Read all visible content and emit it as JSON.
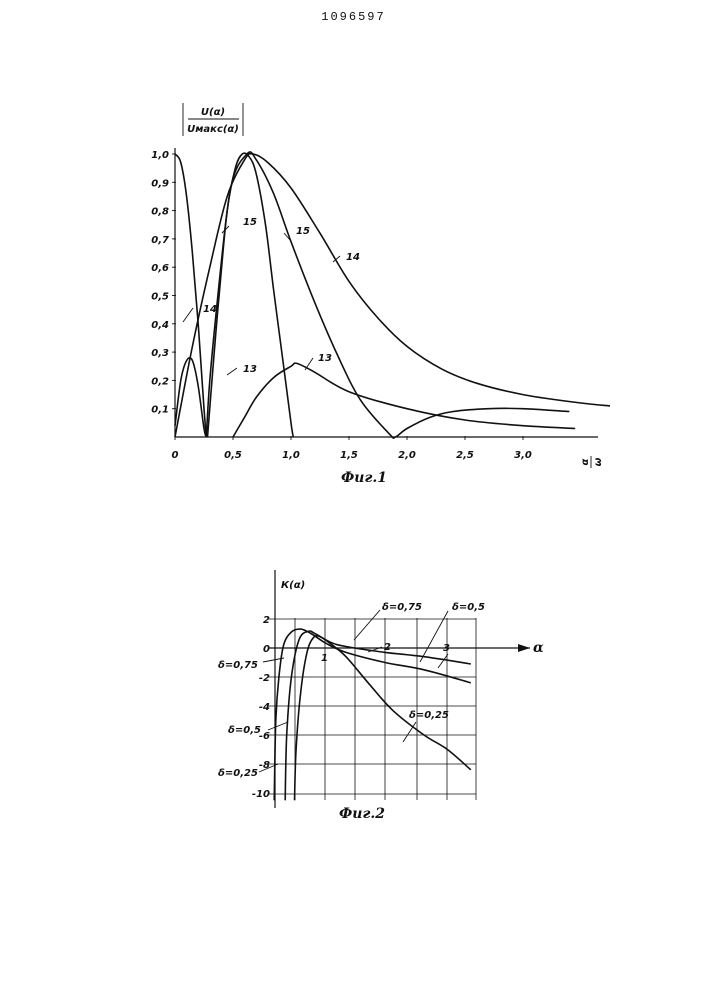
{
  "document": {
    "number": "1096597"
  },
  "chart_data": [
    {
      "type": "line",
      "figure_caption": "Фиг.1",
      "ylabel_top": "U(α)",
      "ylabel_bottom": "Uмакс(α)",
      "xlabel_top": "α",
      "xlabel_bottom": "ω",
      "xlim": [
        0,
        3.8
      ],
      "ylim": [
        0,
        1.0
      ],
      "xticks": [
        "0",
        "0,5",
        "1,0",
        "1,5",
        "2,0",
        "2,5",
        "3,0"
      ],
      "xtick_values": [
        0,
        0.5,
        1.0,
        1.5,
        2.0,
        2.5,
        3.0
      ],
      "yticks": [
        "0,1",
        "0,2",
        "0,3",
        "0,4",
        "0,5",
        "0,6",
        "0,7",
        "0,8",
        "0,9",
        "1,0"
      ],
      "ytick_values": [
        0.1,
        0.2,
        0.3,
        0.4,
        0.5,
        0.6,
        0.7,
        0.8,
        0.9,
        1.0
      ],
      "curve_labels": [
        "15",
        "15",
        "14",
        "14",
        "13",
        "13"
      ],
      "series": [
        {
          "name": "14",
          "points": [
            [
              0,
              0
            ],
            [
              0.15,
              0.32
            ],
            [
              0.3,
              0.6
            ],
            [
              0.45,
              0.85
            ],
            [
              0.6,
              0.98
            ],
            [
              0.67,
              1.0
            ],
            [
              0.8,
              0.97
            ],
            [
              1.0,
              0.88
            ],
            [
              1.25,
              0.72
            ],
            [
              1.5,
              0.55
            ],
            [
              1.75,
              0.42
            ],
            [
              2.0,
              0.32
            ],
            [
              2.3,
              0.24
            ],
            [
              2.6,
              0.19
            ],
            [
              3.0,
              0.15
            ],
            [
              3.5,
              0.12
            ],
            [
              3.75,
              0.11
            ]
          ]
        },
        {
          "name": "15",
          "points": [
            [
              0.28,
              0
            ],
            [
              0.38,
              0.5
            ],
            [
              0.48,
              0.88
            ],
            [
              0.62,
              1.0
            ],
            [
              0.7,
              0.98
            ],
            [
              0.85,
              0.86
            ],
            [
              1.0,
              0.69
            ],
            [
              1.2,
              0.48
            ],
            [
              1.4,
              0.29
            ],
            [
              1.6,
              0.13
            ],
            [
              1.85,
              0.01
            ],
            [
              1.9,
              0
            ],
            [
              2.0,
              0.03
            ],
            [
              2.2,
              0.07
            ],
            [
              2.4,
              0.09
            ],
            [
              2.7,
              0.1
            ],
            [
              3.0,
              0.1
            ],
            [
              3.4,
              0.09
            ]
          ]
        },
        {
          "name": "13",
          "points": [
            [
              0,
              0.04
            ],
            [
              0.05,
              0.2
            ],
            [
              0.1,
              0.27
            ],
            [
              0.15,
              0.27
            ],
            [
              0.2,
              0.18
            ],
            [
              0.25,
              0.03
            ],
            [
              0.27,
              0
            ]
          ]
        },
        {
          "name": "13",
          "points": [
            [
              0.5,
              0
            ],
            [
              0.6,
              0.07
            ],
            [
              0.7,
              0.14
            ],
            [
              0.85,
              0.21
            ],
            [
              1.0,
              0.25
            ],
            [
              1.05,
              0.26
            ],
            [
              1.2,
              0.23
            ],
            [
              1.5,
              0.16
            ],
            [
              2.0,
              0.1
            ],
            [
              2.5,
              0.06
            ],
            [
              3.0,
              0.04
            ],
            [
              3.45,
              0.03
            ]
          ]
        },
        {
          "name": "",
          "points": [
            [
              0,
              1.0
            ],
            [
              0.05,
              0.97
            ],
            [
              0.1,
              0.85
            ],
            [
              0.15,
              0.65
            ],
            [
              0.2,
              0.4
            ],
            [
              0.25,
              0.1
            ],
            [
              0.27,
              0
            ]
          ]
        },
        {
          "name": "",
          "points": [
            [
              0.27,
              0
            ],
            [
              0.3,
              0.2
            ],
            [
              0.37,
              0.5
            ],
            [
              0.45,
              0.8
            ],
            [
              0.52,
              0.95
            ],
            [
              0.58,
              1.0
            ],
            [
              0.64,
              0.99
            ],
            [
              0.7,
              0.93
            ],
            [
              0.78,
              0.75
            ],
            [
              0.85,
              0.52
            ],
            [
              0.93,
              0.27
            ],
            [
              1.0,
              0.05
            ],
            [
              1.02,
              0
            ]
          ]
        }
      ]
    },
    {
      "type": "line",
      "figure_caption": "Фиг.2",
      "ylabel": "К(α)",
      "xlabel": "α",
      "ylim": [
        -10,
        2
      ],
      "yticks": [
        "2",
        "0",
        "-2",
        "-4",
        "-6",
        "-8",
        "-10"
      ],
      "ytick_values": [
        2,
        0,
        -2,
        -4,
        -6,
        -8,
        -10
      ],
      "curve_labels": [
        "δ=0,75",
        "δ=0,5",
        "δ=0,25",
        "δ=0,75",
        "δ=0,5",
        "δ=0,25",
        "1",
        "2",
        "3"
      ],
      "series": [
        {
          "name": "δ=0,75",
          "points": [
            [
              0.08,
              -10.5
            ],
            [
              0.1,
              -5
            ],
            [
              0.14,
              -2
            ],
            [
              0.2,
              0.2
            ],
            [
              0.3,
              1.1
            ],
            [
              0.42,
              1.3
            ],
            [
              0.55,
              1.0
            ],
            [
              0.75,
              0.3
            ],
            [
              1.0,
              -0.3
            ],
            [
              1.5,
              -1.0
            ],
            [
              2.0,
              -1.5
            ],
            [
              2.6,
              -2.4
            ]
          ]
        },
        {
          "name": "δ=0,5",
          "points": [
            [
              0.22,
              -10.5
            ],
            [
              0.24,
              -6
            ],
            [
              0.3,
              -2
            ],
            [
              0.4,
              0.6
            ],
            [
              0.52,
              1.15
            ],
            [
              0.6,
              1.0
            ],
            [
              0.8,
              0.4
            ],
            [
              1.0,
              0.1
            ],
            [
              1.5,
              -0.3
            ],
            [
              2.0,
              -0.6
            ],
            [
              2.6,
              -1.1
            ]
          ]
        },
        {
          "name": "δ=0,25",
          "points": [
            [
              0.34,
              -10.5
            ],
            [
              0.36,
              -7
            ],
            [
              0.42,
              -3
            ],
            [
              0.5,
              -0.3
            ],
            [
              0.58,
              0.7
            ],
            [
              0.66,
              0.8
            ],
            [
              0.8,
              0.3
            ],
            [
              1.0,
              -0.6
            ],
            [
              1.3,
              -2.5
            ],
            [
              1.6,
              -4.3
            ],
            [
              2.0,
              -6.0
            ],
            [
              2.3,
              -7.0
            ],
            [
              2.6,
              -8.4
            ]
          ]
        }
      ],
      "xlim": [
        0,
        2.75
      ]
    }
  ]
}
